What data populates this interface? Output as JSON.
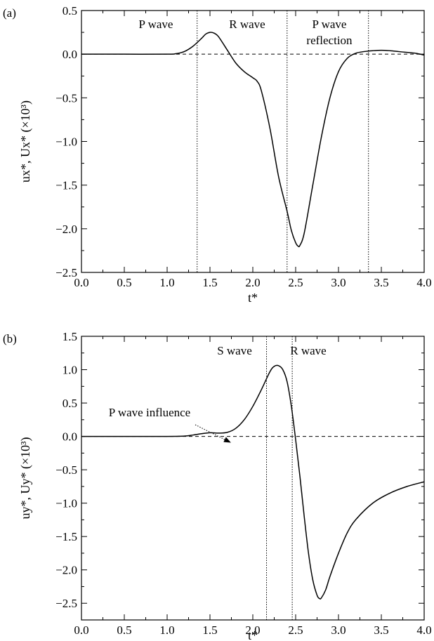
{
  "chart_data": [
    {
      "panel_label": "(a)",
      "type": "line",
      "xlabel": "t*",
      "ylabel": "ux*, Ux* (×10³)",
      "xlim": [
        0.0,
        4.0
      ],
      "ylim": [
        -2.5,
        0.5
      ],
      "xticks": [
        "0.0",
        "0.5",
        "1.0",
        "1.5",
        "2.0",
        "2.5",
        "3.0",
        "3.5",
        "4.0"
      ],
      "yticks": [
        "0.5",
        "0.0",
        "−0.5",
        "−1.0",
        "−1.5",
        "−2.0",
        "−2.5"
      ],
      "reference_line_y": 0.0,
      "vertical_lines_x": [
        1.35,
        2.4,
        3.35
      ],
      "annotations": [
        "P wave",
        "R wave",
        "P wave",
        "reflection"
      ],
      "series": [
        {
          "x": [
            0.0,
            0.5,
            1.0,
            1.1,
            1.2,
            1.3,
            1.4,
            1.45,
            1.5,
            1.55,
            1.6,
            1.7,
            1.8,
            1.9,
            2.0,
            2.05,
            2.1,
            2.2,
            2.3,
            2.4,
            2.45,
            2.5,
            2.53,
            2.55,
            2.6,
            2.7,
            2.8,
            2.9,
            3.0,
            3.1,
            3.2,
            3.3,
            3.4,
            3.5,
            3.6,
            3.7,
            3.8,
            3.9,
            4.0
          ],
          "y": [
            0.0,
            0.0,
            0.0,
            0.005,
            0.03,
            0.09,
            0.18,
            0.23,
            0.25,
            0.24,
            0.2,
            0.05,
            -0.1,
            -0.2,
            -0.27,
            -0.31,
            -0.42,
            -0.85,
            -1.4,
            -1.8,
            -2.02,
            -2.16,
            -2.2,
            -2.19,
            -2.05,
            -1.5,
            -0.95,
            -0.5,
            -0.2,
            -0.05,
            0.01,
            0.03,
            0.04,
            0.045,
            0.04,
            0.03,
            0.02,
            0.01,
            -0.01
          ]
        }
      ]
    },
    {
      "panel_label": "(b)",
      "type": "line",
      "xlabel": "t*",
      "ylabel": "uy*, Uy* (×10³)",
      "xlim": [
        0.0,
        4.0
      ],
      "ylim": [
        -2.75,
        1.5
      ],
      "xticks": [
        "0.0",
        "0.5",
        "1.0",
        "1.5",
        "2.0",
        "2.5",
        "3.0",
        "3.5",
        "4.0"
      ],
      "yticks": [
        "1.5",
        "1.0",
        "0.5",
        "0.0",
        "−0.5",
        "−1.0",
        "−1.5",
        "−2.0",
        "−2.5"
      ],
      "reference_line_y": 0.0,
      "vertical_lines_x": [
        2.16,
        2.46
      ],
      "annotations": [
        "S wave",
        "R wave",
        "P wave influence"
      ],
      "series": [
        {
          "x": [
            0.0,
            0.5,
            1.0,
            1.2,
            1.3,
            1.4,
            1.5,
            1.6,
            1.7,
            1.8,
            1.9,
            2.0,
            2.1,
            2.2,
            2.25,
            2.3,
            2.35,
            2.4,
            2.45,
            2.5,
            2.55,
            2.6,
            2.65,
            2.7,
            2.75,
            2.78,
            2.8,
            2.85,
            2.9,
            3.0,
            3.1,
            3.2,
            3.4,
            3.6,
            3.8,
            4.0
          ],
          "y": [
            0.0,
            0.0,
            0.0,
            0.005,
            0.02,
            0.04,
            0.055,
            0.05,
            0.06,
            0.12,
            0.25,
            0.45,
            0.7,
            0.97,
            1.05,
            1.06,
            1.0,
            0.82,
            0.45,
            -0.05,
            -0.6,
            -1.2,
            -1.75,
            -2.15,
            -2.38,
            -2.43,
            -2.42,
            -2.3,
            -2.1,
            -1.75,
            -1.45,
            -1.25,
            -1.0,
            -0.85,
            -0.75,
            -0.68
          ]
        }
      ]
    }
  ]
}
